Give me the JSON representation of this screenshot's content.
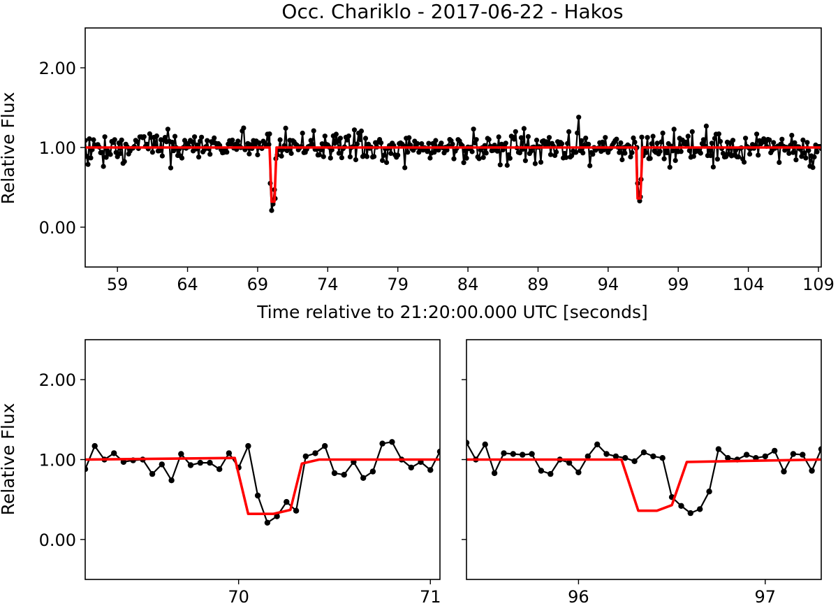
{
  "chart_data": [
    {
      "type": "line",
      "title": "Occ. Chariklo - 2017-06-22 - Hakos",
      "xlabel": "Time relative to 21:20:00.000 UTC [seconds]",
      "ylabel": "Relative Flux",
      "xlim": [
        56.7,
        109.2
      ],
      "ylim": [
        -0.5,
        2.5
      ],
      "xticks": [
        59,
        64,
        69,
        74,
        79,
        84,
        89,
        94,
        99,
        104,
        109
      ],
      "xtick_labels": [
        "59",
        "64",
        "69",
        "74",
        "79",
        "84",
        "89",
        "94",
        "99",
        "104",
        "109"
      ],
      "yticks": [
        0,
        1,
        2
      ],
      "ytick_labels": [
        "0.00",
        "1.00",
        "2.00"
      ],
      "grid": false,
      "series": [
        {
          "color": "#000000",
          "x_range": [
            56.7,
            109.2
          ],
          "sampling_s": 0.1,
          "baseline": 1.0,
          "noise_sigma": 0.1,
          "dips": [
            {
              "x": [
                69.85,
                69.9,
                70.0,
                70.1,
                70.2,
                70.25,
                70.3
              ],
              "y": [
                1.17,
                0.55,
                0.21,
                0.29,
                0.47,
                0.36,
                0.86
              ]
            },
            {
              "x": [
                96.05,
                96.1,
                96.2,
                96.25,
                96.3,
                96.35,
                96.4
              ],
              "y": [
                1.0,
                0.55,
                0.42,
                0.33,
                0.38,
                0.6,
                1.13
              ]
            }
          ],
          "max_value": 1.38,
          "max_at": 91.9
        },
        {
          "color": "#ff0000",
          "x": [
            56.7,
            69.85,
            70.0,
            70.2,
            70.35,
            109.2
          ],
          "y": [
            1.0,
            1.0,
            0.32,
            0.32,
            1.0,
            1.0
          ],
          "x2": [
            96.0,
            96.1,
            96.3,
            96.45
          ],
          "y2": [
            1.0,
            0.36,
            0.36,
            1.0
          ]
        }
      ]
    },
    {
      "type": "line",
      "title": "",
      "xlabel": "",
      "ylabel": "Relative Flux",
      "xlim": [
        69.2,
        71.05
      ],
      "ylim": [
        -0.5,
        2.5
      ],
      "xticks": [
        70,
        71
      ],
      "xtick_labels": [
        "70",
        "71"
      ],
      "yticks": [
        0,
        1,
        2
      ],
      "ytick_labels": [
        "0.00",
        "1.00",
        "2.00"
      ],
      "grid": false,
      "series": [
        {
          "color": "#000000",
          "x": [
            69.2,
            69.25,
            69.3,
            69.35,
            69.4,
            69.45,
            69.5,
            69.55,
            69.6,
            69.65,
            69.7,
            69.75,
            69.8,
            69.85,
            69.9,
            69.95,
            70.0,
            70.05,
            70.1,
            70.15,
            70.2,
            70.25,
            70.3,
            70.35,
            70.4,
            70.45,
            70.5,
            70.55,
            70.6,
            70.65,
            70.7,
            70.75,
            70.8,
            70.85,
            70.9,
            70.95,
            71.0,
            71.05
          ],
          "y": [
            0.88,
            1.17,
            1.0,
            1.08,
            0.97,
            0.99,
            1.0,
            0.82,
            0.94,
            0.74,
            1.07,
            0.93,
            0.96,
            0.96,
            0.88,
            1.08,
            0.9,
            1.17,
            0.55,
            0.21,
            0.29,
            0.47,
            0.36,
            1.04,
            1.08,
            1.17,
            0.83,
            0.81,
            0.97,
            0.77,
            0.85,
            1.2,
            1.22,
            1.0,
            0.9,
            0.97,
            0.87,
            1.1
          ]
        },
        {
          "color": "#ff0000",
          "x": [
            69.2,
            69.98,
            70.05,
            70.18,
            70.27,
            70.33,
            70.42,
            71.05
          ],
          "y": [
            1.0,
            1.02,
            0.32,
            0.32,
            0.37,
            0.95,
            1.0,
            1.0
          ]
        }
      ]
    },
    {
      "type": "line",
      "title": "",
      "xlabel": "",
      "ylabel": "",
      "xlim": [
        95.4,
        97.3
      ],
      "ylim": [
        -0.5,
        2.5
      ],
      "xticks": [
        96,
        97
      ],
      "xtick_labels": [
        "96",
        "97"
      ],
      "yticks": [
        0,
        1,
        2
      ],
      "series": [
        {
          "color": "#000000",
          "x": [
            95.4,
            95.45,
            95.5,
            95.55,
            95.6,
            95.65,
            95.7,
            95.75,
            95.8,
            95.85,
            95.9,
            95.95,
            96.0,
            96.05,
            96.1,
            96.15,
            96.2,
            96.25,
            96.3,
            96.35,
            96.4,
            96.45,
            96.5,
            96.55,
            96.6,
            96.65,
            96.7,
            96.75,
            96.8,
            96.85,
            96.9,
            96.95,
            97.0,
            97.05,
            97.1,
            97.15,
            97.2,
            97.25,
            97.3
          ],
          "y": [
            1.21,
            1.0,
            1.19,
            0.83,
            1.08,
            1.07,
            1.06,
            1.07,
            0.86,
            0.82,
            1.0,
            0.96,
            0.84,
            1.04,
            1.19,
            1.07,
            1.04,
            1.02,
            0.98,
            1.09,
            1.04,
            1.02,
            0.53,
            0.42,
            0.33,
            0.38,
            0.6,
            1.13,
            1.02,
            1.0,
            1.06,
            1.02,
            1.04,
            1.11,
            0.85,
            1.07,
            1.06,
            0.86,
            1.13
          ]
        },
        {
          "color": "#ff0000",
          "x": [
            95.4,
            96.23,
            96.32,
            96.42,
            96.5,
            96.58,
            97.3
          ],
          "y": [
            1.0,
            1.0,
            0.36,
            0.36,
            0.43,
            0.97,
            1.0
          ]
        }
      ]
    }
  ]
}
